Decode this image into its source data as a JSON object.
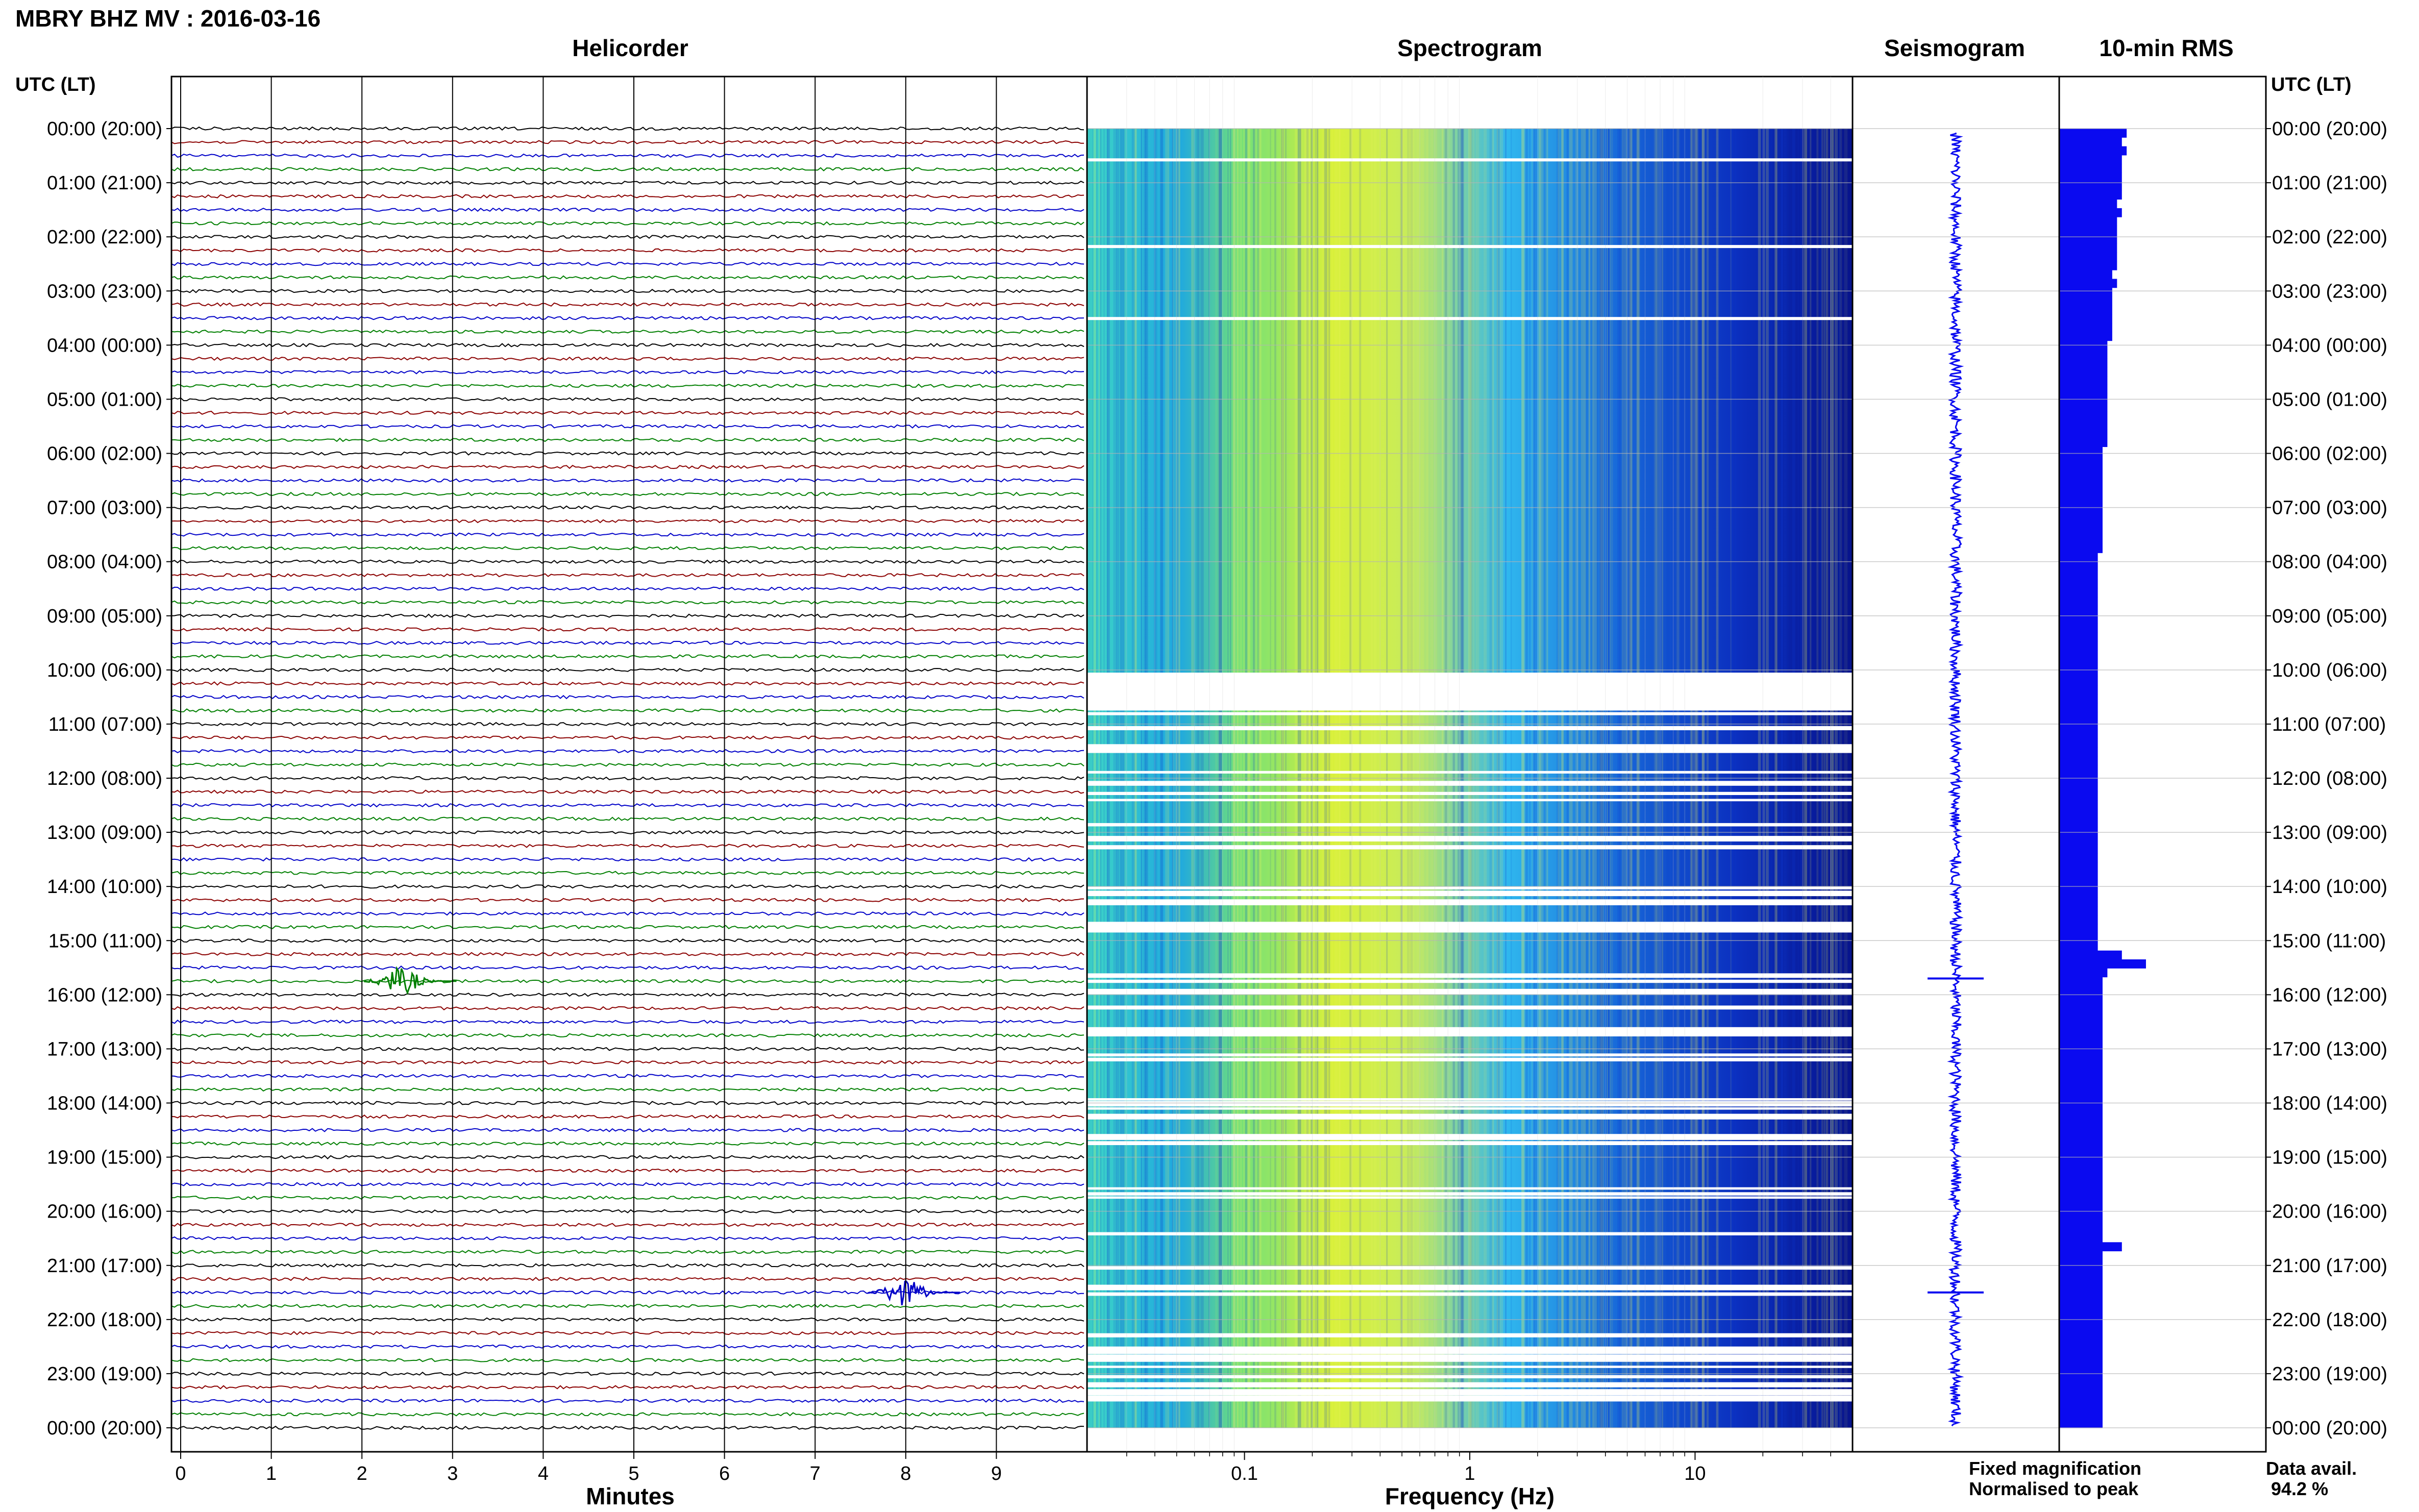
{
  "header": {
    "title": "MBRY BHZ MV : 2016-03-16",
    "utc_header_left": "UTC (LT)",
    "utc_header_right": "UTC (LT)"
  },
  "panels": {
    "helicorder": "Helicorder",
    "spectrogram": "Spectrogram",
    "seismogram": "Seismogram",
    "rms": "10-min RMS"
  },
  "time_labels": [
    "00:00 (20:00)",
    "01:00 (21:00)",
    "02:00 (22:00)",
    "03:00 (23:00)",
    "04:00 (00:00)",
    "05:00 (01:00)",
    "06:00 (02:00)",
    "07:00 (03:00)",
    "08:00 (04:00)",
    "09:00 (05:00)",
    "10:00 (06:00)",
    "11:00 (07:00)",
    "12:00 (08:00)",
    "13:00 (09:00)",
    "14:00 (10:00)",
    "15:00 (11:00)",
    "16:00 (12:00)",
    "17:00 (13:00)",
    "18:00 (14:00)",
    "19:00 (15:00)",
    "20:00 (16:00)",
    "21:00 (17:00)",
    "22:00 (18:00)",
    "23:00 (19:00)",
    "00:00 (20:00)"
  ],
  "colors": {
    "trace_cycle": [
      "#000000",
      "#8b0000",
      "#0000c8",
      "#007f00"
    ],
    "rms_bar": "#0a0af0",
    "legend_fixed": "#0000ff",
    "legend_normalised": "#ff0000"
  },
  "legend": {
    "fixed": "Fixed magnification",
    "normalised": "Normalised to peak",
    "data_avail_label": "Data avail.",
    "data_avail_value": "94.2 %"
  },
  "chart_data": [
    {
      "type": "line",
      "title": "Helicorder",
      "xlabel": "Minutes",
      "x_ticks": [
        "0",
        "1",
        "2",
        "3",
        "4",
        "5",
        "6",
        "7",
        "8",
        "9"
      ],
      "xlim": [
        0,
        10
      ],
      "traces_per_hour": 4,
      "hours": 24,
      "events": [
        {
          "hour": 15,
          "row": 3,
          "minute": 2.5
        },
        {
          "hour": 21,
          "row": 2,
          "minute": 8.0
        }
      ]
    },
    {
      "type": "heatmap",
      "title": "Spectrogram",
      "xlabel": "Frequency (Hz)",
      "x_ticks": [
        "0.1",
        "1",
        "10"
      ],
      "xscale": "log",
      "xlim": [
        0.02,
        50
      ]
    },
    {
      "type": "line",
      "title": "Seismogram",
      "events_hour": [
        15.7,
        21.5
      ]
    },
    {
      "type": "bar",
      "title": "10-min RMS",
      "values": [
        1.4,
        1.3,
        1.4,
        1.3,
        1.3,
        1.3,
        1.3,
        1.3,
        1.2,
        1.3,
        1.2,
        1.2,
        1.2,
        1.2,
        1.2,
        1.2,
        1.1,
        1.2,
        1.1,
        1.1,
        1.1,
        1.1,
        1.1,
        1.1,
        1.0,
        1.0,
        1.0,
        1.0,
        1.0,
        1.0,
        1.0,
        1.0,
        1.0,
        1.0,
        1.0,
        1.0,
        0.9,
        0.9,
        0.9,
        0.9,
        0.9,
        0.9,
        0.9,
        0.9,
        0.9,
        0.9,
        0.9,
        0.9,
        0.8,
        0.8,
        0.8,
        0.8,
        0.8,
        0.8,
        0.8,
        0.8,
        0.8,
        0.8,
        0.8,
        0.8,
        0.8,
        0.8,
        0.8,
        0.8,
        0.8,
        0.8,
        0.8,
        0.8,
        0.8,
        0.8,
        0.8,
        0.8,
        0.8,
        0.8,
        0.8,
        0.8,
        0.8,
        0.8,
        0.8,
        0.8,
        0.8,
        0.8,
        0.8,
        0.8,
        0.8,
        0.8,
        0.8,
        0.8,
        0.8,
        0.8,
        0.8,
        0.8,
        0.8,
        1.3,
        1.8,
        1.0,
        0.9,
        0.9,
        0.9,
        0.9,
        0.9,
        0.9,
        0.9,
        0.9,
        0.9,
        0.9,
        0.9,
        0.9,
        0.9,
        0.9,
        0.9,
        0.9,
        0.9,
        0.9,
        0.9,
        0.9,
        0.9,
        0.9,
        0.9,
        0.9,
        0.9,
        0.9,
        0.9,
        0.9,
        0.9,
        0.9,
        1.3,
        0.9,
        0.9,
        0.9,
        0.9,
        0.9,
        0.9,
        0.9,
        0.9,
        0.9,
        0.9,
        0.9,
        0.9,
        0.9,
        0.9,
        0.9,
        0.9,
        0.9,
        0.9,
        0.9,
        0.9
      ]
    }
  ]
}
